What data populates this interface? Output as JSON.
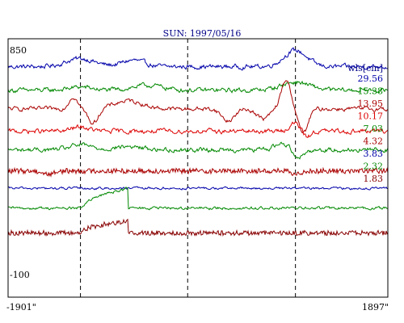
{
  "chart_data": {
    "type": "line",
    "title": "SUN: 1997/05/16",
    "xlabel": "",
    "ylabel": "",
    "x_tick_labels": [
      "-1901\"",
      "1897\""
    ],
    "xlim": [
      -1901,
      1897
    ],
    "ylim": [
      -100,
      850
    ],
    "y_tick_labels": [
      "850",
      "-100"
    ],
    "legend_title": "wls[cm]",
    "grid": false,
    "legend_placement": "right",
    "vertical_markers": [
      -1177,
      -105,
      973
    ],
    "series": [
      {
        "name": "29.56",
        "color": "#0000aa",
        "offset": 770,
        "style": "bumpy",
        "features": [
          [
            -1177,
            10,
            200
          ],
          [
            -650,
            8,
            160
          ],
          [
            973,
            20,
            160
          ]
        ]
      },
      {
        "name": "15.38",
        "color": "#008800",
        "offset": 675,
        "style": "bumpy",
        "features": [
          [
            -1177,
            4,
            160
          ],
          [
            -500,
            6,
            220
          ],
          [
            973,
            10,
            200
          ]
        ]
      },
      {
        "name": "13.95",
        "color": "#aa0000",
        "offset": 600,
        "style": "wavy",
        "features": [
          [
            -1250,
            15,
            60
          ],
          [
            -1050,
            -18,
            70
          ],
          [
            -700,
            10,
            200
          ],
          [
            300,
            -15,
            90
          ],
          [
            650,
            -12,
            90
          ],
          [
            880,
            35,
            70
          ],
          [
            1050,
            -30,
            70
          ]
        ]
      },
      {
        "name": "10.17",
        "color": "#dd0000",
        "offset": 510,
        "style": "bumpy",
        "features": [
          [
            -1177,
            5,
            120
          ],
          [
            973,
            10,
            80
          ],
          [
            1080,
            -8,
            60
          ]
        ]
      },
      {
        "name": "7.03",
        "color": "#008800",
        "offset": 435,
        "style": "bumpy",
        "features": [
          [
            -1177,
            6,
            150
          ],
          [
            -700,
            4,
            200
          ],
          [
            850,
            8,
            120
          ],
          [
            1000,
            -10,
            80
          ]
        ]
      },
      {
        "name": "4.32",
        "color": "#aa0000",
        "offset": 350,
        "style": "noisy",
        "features": [
          [
            -1500,
            -4,
            80
          ],
          [
            973,
            -5,
            60
          ]
        ]
      },
      {
        "name": "3.83",
        "color": "#0000aa",
        "offset": 280,
        "style": "quiet",
        "features": []
      },
      {
        "name": "2.32",
        "color": "#008800",
        "offset": 200,
        "style": "step",
        "step": [
          -1177,
          -700,
          -3,
          25
        ]
      },
      {
        "name": "1.83",
        "color": "#880000",
        "offset": 100,
        "style": "step-noisy",
        "step": [
          -1177,
          -700,
          0,
          15
        ]
      }
    ]
  }
}
